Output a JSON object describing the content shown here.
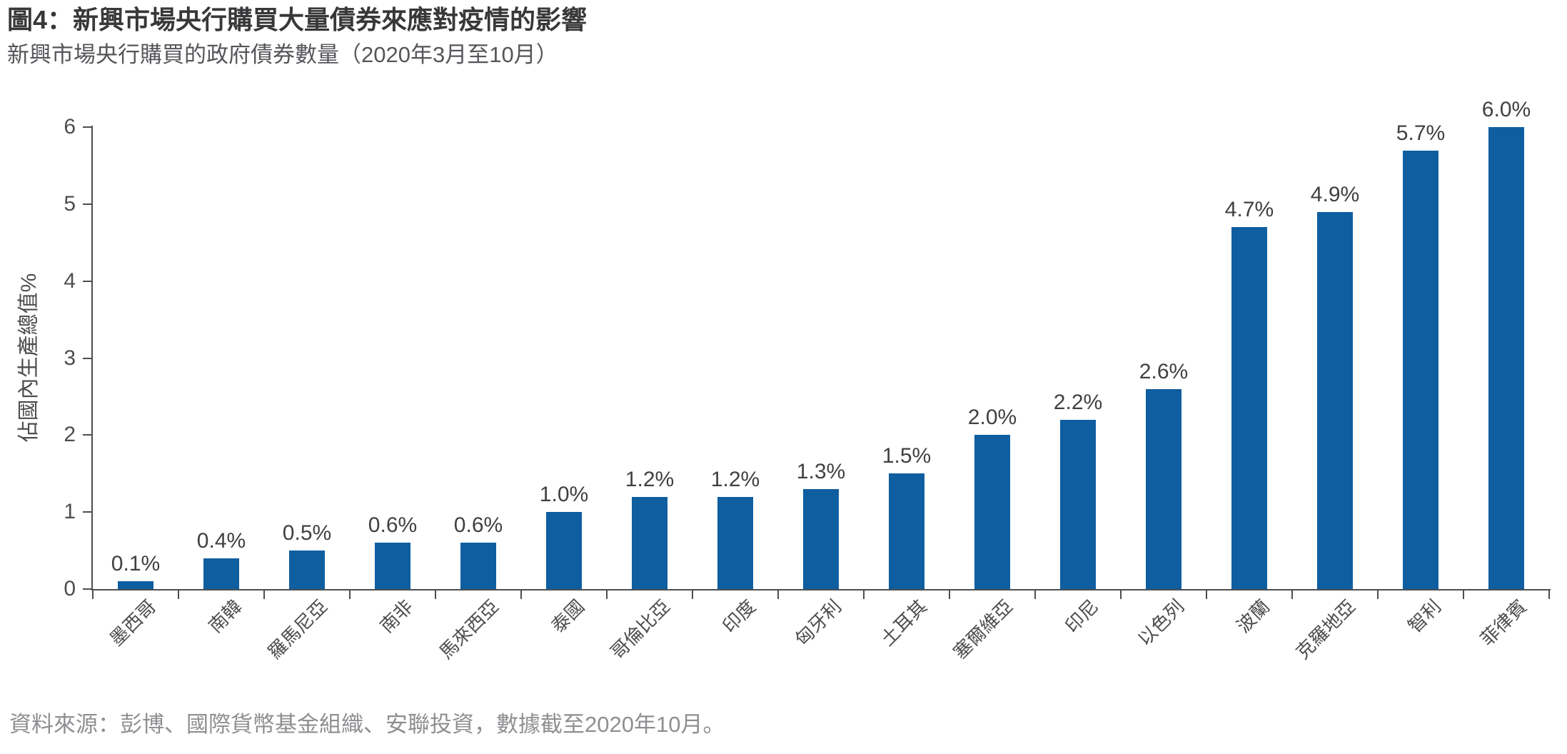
{
  "header": {
    "title": "圖4：新興市場央行購買大量債券來應對疫情的影響",
    "subtitle": "新興市場央行購買的政府債券數量（2020年3月至10月）"
  },
  "chart_data": {
    "type": "bar",
    "title": "圖4：新興市場央行購買大量債券來應對疫情的影響",
    "subtitle": "新興市場央行購買的政府債券數量（2020年3月至10月）",
    "categories": [
      "墨西哥",
      "南韓",
      "羅馬尼亞",
      "南非",
      "馬來西亞",
      "泰國",
      "哥倫比亞",
      "印度",
      "匈牙利",
      "土耳其",
      "塞爾維亞",
      "印尼",
      "以色列",
      "波蘭",
      "克羅地亞",
      "智利",
      "菲律賓"
    ],
    "values": [
      0.1,
      0.4,
      0.5,
      0.6,
      0.6,
      1.0,
      1.2,
      1.2,
      1.3,
      1.5,
      2.0,
      2.2,
      2.6,
      4.7,
      4.9,
      5.7,
      6.0
    ],
    "bar_labels": [
      "0.1%",
      "0.4%",
      "0.5%",
      "0.6%",
      "0.6%",
      "1.0%",
      "1.2%",
      "1.2%",
      "1.3%",
      "1.5%",
      "2.0%",
      "2.2%",
      "2.6%",
      "4.7%",
      "4.9%",
      "5.7%",
      "6.0%"
    ],
    "xlabel": "",
    "ylabel": "佔國內生產總值%",
    "yticks": [
      0,
      1,
      2,
      3,
      4,
      5,
      6
    ],
    "ylim": [
      0,
      6
    ],
    "grid": false,
    "legend": false,
    "bar_color": "#0F5EA0",
    "axis_color": "#4D4E50"
  },
  "footer": {
    "source": "資料來源：彭博、國際貨幣基金組織、安聯投資，數據截至2020年10月。"
  }
}
